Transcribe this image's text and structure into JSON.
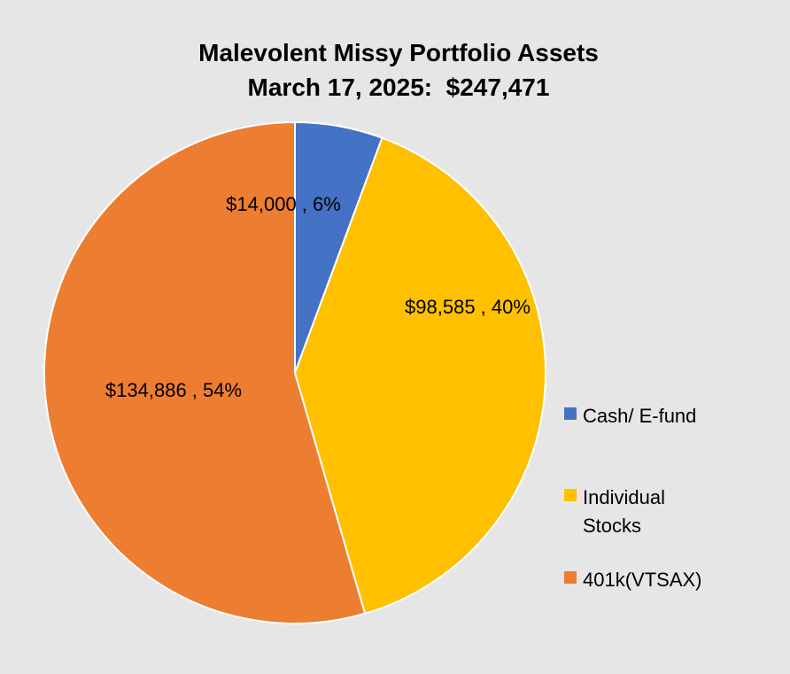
{
  "chart_data": {
    "type": "pie",
    "title_lines": [
      "Malevolent Missy Portfolio Assets",
      "March 17, 2025:  $247,471"
    ],
    "slices": [
      {
        "label": "Cash/ E-fund",
        "value": 14000,
        "data_label": "$14,000 , 6%",
        "color": "#4472c4"
      },
      {
        "label": "Individual Stocks",
        "value": 98585,
        "data_label": "$98,585 , 40%",
        "color": "#ffc000"
      },
      {
        "label": "401k(VTSAX)",
        "value": 134886,
        "data_label": "$134,886 , 54%",
        "color": "#ed7d31"
      }
    ],
    "start_angle_deg": 0,
    "direction": "clockwise",
    "legend_position": "right"
  }
}
